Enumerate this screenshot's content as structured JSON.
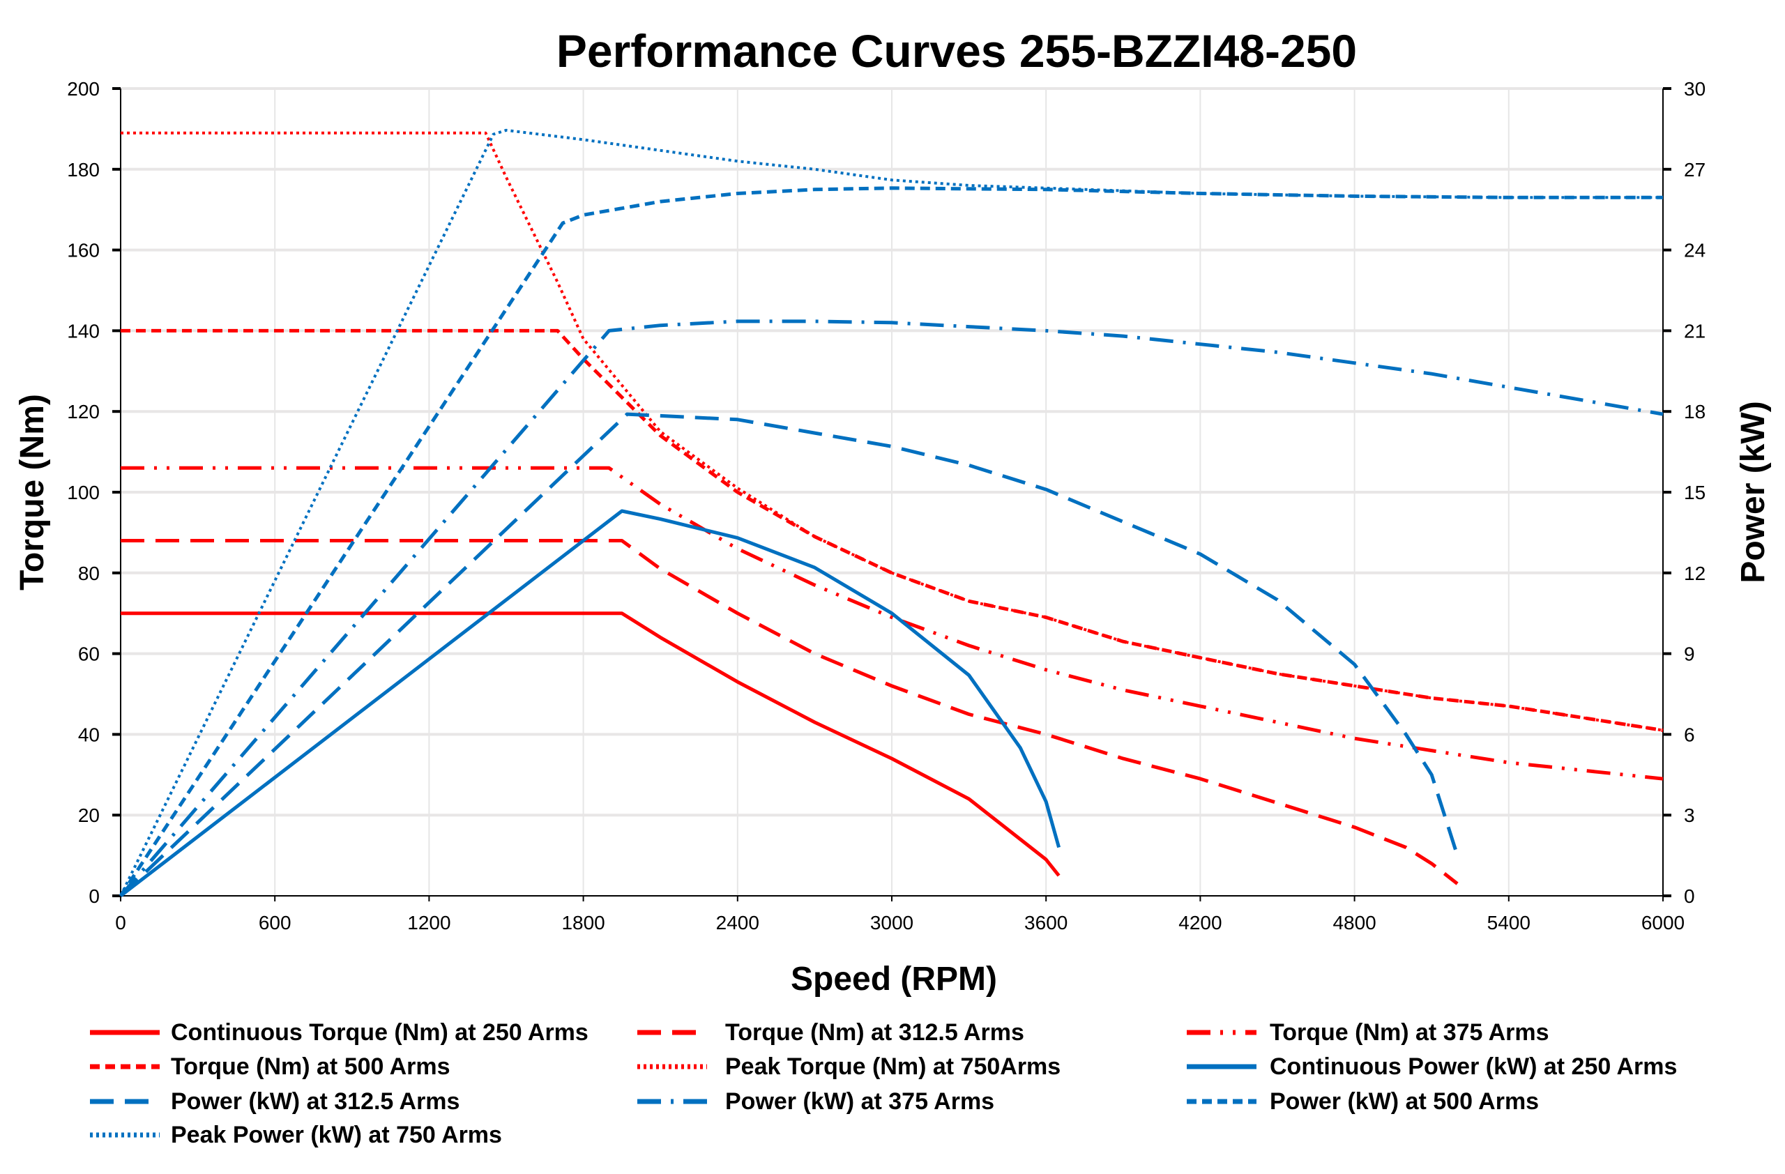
{
  "chart_data": {
    "type": "line",
    "title": "Performance Curves 255-BZZI48-250",
    "xlabel": "Speed (RPM)",
    "ylabel": "Torque (Nm)",
    "y2label": "Power (kW)",
    "xlim": [
      0,
      6000
    ],
    "ylim": [
      0,
      200
    ],
    "y2lim": [
      0,
      30
    ],
    "xticks": [
      0,
      600,
      1200,
      1800,
      2400,
      3000,
      3600,
      4200,
      4800,
      5400,
      6000
    ],
    "yticks": [
      0,
      20,
      40,
      60,
      80,
      100,
      120,
      140,
      160,
      180,
      200
    ],
    "y2ticks": [
      0,
      3,
      6,
      9,
      12,
      15,
      18,
      21,
      24,
      27,
      30
    ],
    "grid": true,
    "legend_placement": "bottom",
    "colors": {
      "torque": "#ff0000",
      "power": "#0070c0"
    },
    "series": [
      {
        "name": "Continuous Torque (Nm) at 250 Arms",
        "axis": "left",
        "color": "#ff0000",
        "style": "solid",
        "x": [
          0,
          1950,
          2100,
          2400,
          2700,
          3000,
          3300,
          3500,
          3600,
          3650
        ],
        "y": [
          70,
          70,
          64,
          53,
          43,
          34,
          24,
          14,
          9,
          5
        ]
      },
      {
        "name": "Torque (Nm) at 312.5 Arms",
        "axis": "left",
        "color": "#ff0000",
        "style": "long-dash",
        "x": [
          0,
          1950,
          2100,
          2400,
          2700,
          3000,
          3300,
          3600,
          3900,
          4200,
          4500,
          4800,
          5000,
          5100,
          5200
        ],
        "y": [
          88,
          88,
          81,
          70,
          60,
          52,
          45,
          40,
          34,
          29,
          23,
          17,
          12,
          8,
          3
        ]
      },
      {
        "name": "Torque (Nm) at 375 Arms",
        "axis": "left",
        "color": "#ff0000",
        "style": "long-dash-dot-dot",
        "x": [
          0,
          1900,
          2100,
          2400,
          2700,
          3000,
          3300,
          3600,
          3900,
          4200,
          4500,
          4800,
          5100,
          5400,
          5700,
          6000
        ],
        "y": [
          106,
          106,
          97,
          86,
          77,
          69,
          62,
          56,
          51,
          47,
          43,
          39,
          36,
          33,
          31,
          29
        ]
      },
      {
        "name": "Torque (Nm) at 500 Arms",
        "axis": "left",
        "color": "#ff0000",
        "style": "dash",
        "x": [
          0,
          1700,
          1800,
          2100,
          2400,
          2700,
          3000,
          3300,
          3600,
          3900,
          4200,
          4500,
          4800,
          5100,
          5400,
          5700,
          6000
        ],
        "y": [
          140,
          140,
          133,
          114,
          100,
          89,
          80,
          73,
          69,
          63,
          59,
          55,
          52,
          49,
          47,
          44,
          41
        ]
      },
      {
        "name": "Peak  Torque (Nm) at 750Arms",
        "axis": "left",
        "color": "#ff0000",
        "style": "dot",
        "x": [
          0,
          1420,
          1500,
          1700,
          1800,
          2100,
          2400,
          2700,
          3000,
          3300,
          3600,
          3900,
          4200,
          4500,
          4800,
          5100,
          5400,
          5700,
          6000
        ],
        "y": [
          189,
          189,
          178,
          152,
          138,
          115,
          101,
          89,
          80,
          73,
          69,
          63,
          59,
          55,
          52,
          49,
          47,
          44,
          41
        ]
      },
      {
        "name": "Continuous Power (kW) at 250 Arms",
        "axis": "right",
        "color": "#0070c0",
        "style": "solid",
        "x": [
          0,
          1950,
          2100,
          2400,
          2700,
          3000,
          3300,
          3500,
          3600,
          3650
        ],
        "y": [
          0,
          14.3,
          14.0,
          13.3,
          12.2,
          10.5,
          8.2,
          5.5,
          3.5,
          1.8
        ]
      },
      {
        "name": "Power (kW) at 312.5 Arms",
        "axis": "right",
        "color": "#0070c0",
        "style": "long-dash",
        "x": [
          0,
          1970,
          2400,
          2700,
          3000,
          3300,
          3600,
          3900,
          4200,
          4500,
          4800,
          5000,
          5100,
          5200
        ],
        "y": [
          0,
          17.9,
          17.7,
          17.2,
          16.7,
          16.0,
          15.1,
          13.9,
          12.7,
          11.0,
          8.6,
          6.0,
          4.5,
          1.5
        ]
      },
      {
        "name": "Power (kW) at 375 Arms",
        "axis": "right",
        "color": "#0070c0",
        "style": "long-dash-dot",
        "x": [
          0,
          1900,
          2100,
          2400,
          2700,
          3000,
          3300,
          3600,
          3900,
          4200,
          4500,
          4800,
          5100,
          5400,
          5700,
          6000
        ],
        "y": [
          0,
          21,
          21.2,
          21.35,
          21.35,
          21.3,
          21.15,
          21.0,
          20.8,
          20.5,
          20.2,
          19.8,
          19.4,
          18.9,
          18.4,
          17.9
        ]
      },
      {
        "name": "Power (kW) at 500 Arms",
        "axis": "right",
        "color": "#0070c0",
        "style": "dash",
        "x": [
          0,
          1720,
          1800,
          2100,
          2400,
          2700,
          3000,
          3600,
          4200,
          4800,
          5400,
          6000
        ],
        "y": [
          0,
          25,
          25.3,
          25.8,
          26.1,
          26.25,
          26.3,
          26.25,
          26.1,
          26.0,
          25.95,
          25.95
        ]
      },
      {
        "name": "Peak Power (kW) at 750 Arms",
        "axis": "right",
        "color": "#0070c0",
        "style": "dot",
        "x": [
          0,
          1450,
          1500,
          1800,
          2100,
          2400,
          2700,
          3000,
          3300,
          3600,
          4200,
          4800,
          5400,
          6000
        ],
        "y": [
          0,
          28.3,
          28.45,
          28.1,
          27.7,
          27.3,
          27.0,
          26.6,
          26.4,
          26.3,
          26.1,
          26.0,
          25.95,
          25.95
        ]
      }
    ]
  }
}
